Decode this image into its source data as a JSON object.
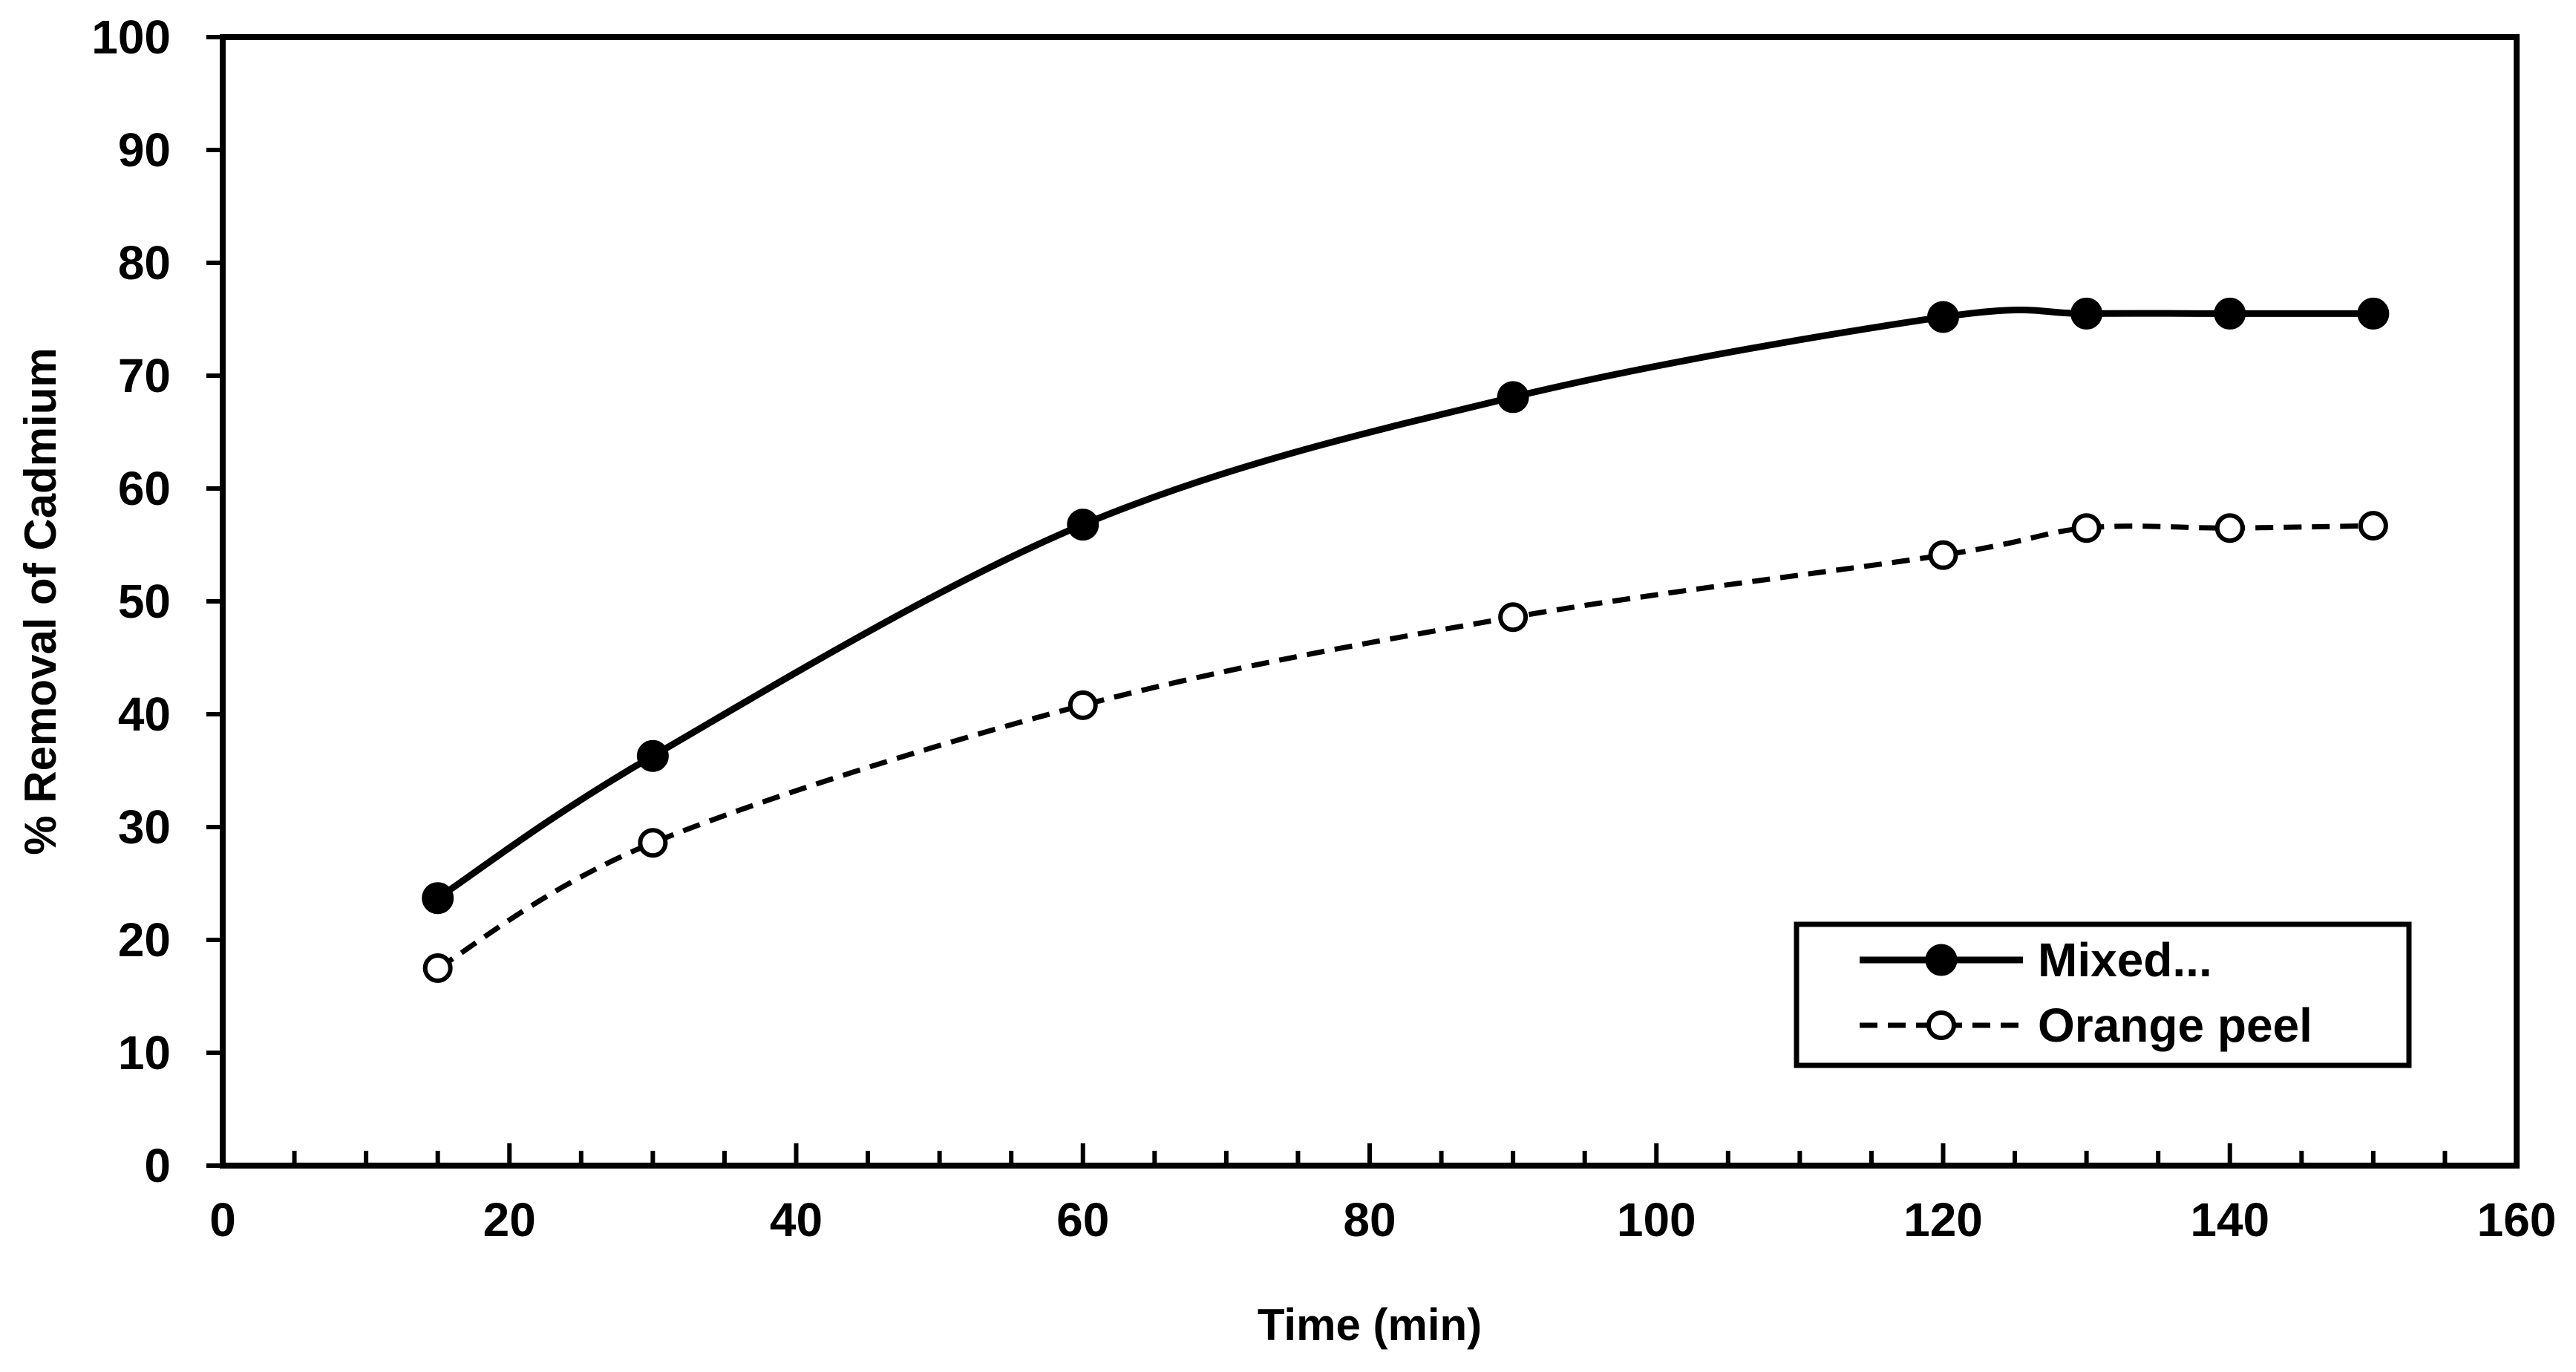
{
  "chart_data": {
    "type": "line",
    "title": "",
    "xlabel": "Time (min)",
    "ylabel": "% Removal of Cadmium",
    "xlim": [
      0,
      160
    ],
    "ylim": [
      0,
      100
    ],
    "xticks": [
      0,
      20,
      40,
      60,
      80,
      100,
      120,
      140,
      160
    ],
    "yticks": [
      0,
      10,
      20,
      30,
      40,
      50,
      60,
      70,
      80,
      90,
      100
    ],
    "grid": false,
    "legend_position": "bottom-right",
    "series": [
      {
        "name": "Mixed...",
        "line_style": "solid",
        "marker": "filled-circle",
        "color": "#000000",
        "x": [
          15,
          30,
          60,
          90,
          120,
          130,
          140,
          150
        ],
        "values": [
          23.7,
          36.3,
          56.8,
          68.1,
          75.2,
          75.5,
          75.5,
          75.5
        ]
      },
      {
        "name": "Orange peel",
        "line_style": "dashed",
        "marker": "open-circle",
        "color": "#000000",
        "x": [
          15,
          30,
          60,
          90,
          120,
          130,
          140,
          150
        ],
        "values": [
          17.5,
          28.6,
          40.8,
          48.6,
          54.1,
          56.5,
          56.5,
          56.7
        ]
      }
    ]
  }
}
